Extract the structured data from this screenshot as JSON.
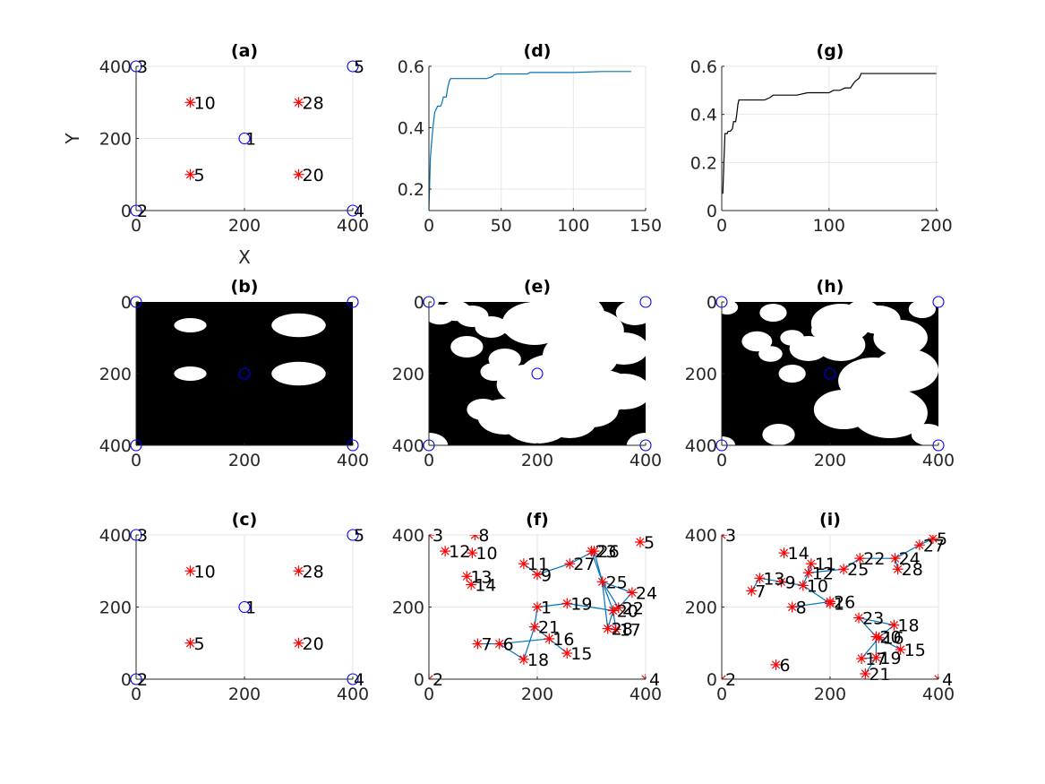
{
  "colors": {
    "circle": "#0000ff",
    "star": "#ff0000",
    "line_d": "#0072bd",
    "line_g": "#000000",
    "edge": "#0072bd",
    "grid": "#e6e6e6",
    "axes": "#262626"
  },
  "chart_data": [
    {
      "id": "a",
      "type": "scatter",
      "title": "(a)",
      "xlabel": "X",
      "ylabel": "Y",
      "xlim": [
        0,
        400
      ],
      "ylim": [
        0,
        400
      ],
      "xticks": [
        0,
        200,
        400
      ],
      "yticks": [
        0,
        200,
        400
      ],
      "grid": true,
      "circles": [
        [
          200,
          200
        ],
        [
          0,
          0
        ],
        [
          0,
          400
        ],
        [
          400,
          0
        ],
        [
          400,
          400
        ]
      ],
      "circle_labels": [
        "1",
        "2",
        "3",
        "4",
        "5"
      ],
      "stars": [
        [
          100,
          300
        ],
        [
          300,
          300
        ],
        [
          100,
          100
        ],
        [
          300,
          100
        ]
      ],
      "star_labels": [
        "10",
        "28",
        "5",
        "20"
      ]
    },
    {
      "id": "d",
      "type": "line",
      "title": "(d)",
      "xlabel": "",
      "ylabel": "",
      "xlim": [
        0,
        150
      ],
      "ylim": [
        0.13,
        0.6
      ],
      "xticks": [
        0,
        50,
        100,
        150
      ],
      "yticks": [
        0.2,
        0.4,
        0.6
      ],
      "grid": true,
      "x": [
        0,
        1,
        2,
        3,
        4,
        5,
        6,
        8,
        9,
        10,
        12,
        13,
        14,
        15,
        16,
        20,
        28,
        30,
        40,
        44,
        45,
        47,
        55,
        68,
        70,
        85,
        100,
        120,
        140
      ],
      "y": [
        0.13,
        0.3,
        0.36,
        0.41,
        0.45,
        0.46,
        0.47,
        0.47,
        0.48,
        0.5,
        0.5,
        0.53,
        0.55,
        0.56,
        0.56,
        0.56,
        0.56,
        0.56,
        0.56,
        0.567,
        0.572,
        0.575,
        0.575,
        0.575,
        0.58,
        0.58,
        0.58,
        0.583,
        0.583
      ]
    },
    {
      "id": "g",
      "type": "line",
      "title": "(g)",
      "xlabel": "",
      "ylabel": "",
      "xlim": [
        0,
        202
      ],
      "ylim": [
        0,
        0.6
      ],
      "xticks": [
        0,
        100,
        200
      ],
      "yticks": [
        0,
        0.2,
        0.4,
        0.6
      ],
      "grid": true,
      "x": [
        1,
        2,
        3,
        5,
        6,
        8,
        10,
        11,
        13,
        14,
        15,
        16,
        20,
        30,
        40,
        45,
        48,
        60,
        70,
        80,
        90,
        100,
        104,
        108,
        110,
        115,
        120,
        123,
        125,
        128,
        130,
        160,
        200
      ],
      "y": [
        0.07,
        0.2,
        0.32,
        0.32,
        0.33,
        0.33,
        0.34,
        0.37,
        0.37,
        0.4,
        0.44,
        0.46,
        0.46,
        0.46,
        0.46,
        0.47,
        0.48,
        0.48,
        0.48,
        0.49,
        0.49,
        0.49,
        0.5,
        0.5,
        0.5,
        0.51,
        0.51,
        0.53,
        0.54,
        0.55,
        0.57,
        0.57,
        0.57
      ]
    },
    {
      "id": "b",
      "type": "heatmap",
      "title": "(b)",
      "xlabel": "",
      "ylabel": "",
      "xlim": [
        0,
        400
      ],
      "ylim": [
        0,
        400
      ],
      "xticks": [
        0,
        200,
        400
      ],
      "yticks": [
        0,
        200,
        400
      ],
      "y_reversed": true,
      "grid": false,
      "blobs": [
        [
          100,
          65,
          30,
          20
        ],
        [
          100,
          200,
          30,
          20
        ],
        [
          300,
          65,
          50,
          33
        ],
        [
          300,
          200,
          50,
          33
        ]
      ],
      "circles": [
        [
          200,
          200
        ],
        [
          0,
          0
        ],
        [
          0,
          400
        ],
        [
          400,
          0
        ],
        [
          400,
          400
        ]
      ]
    },
    {
      "id": "e",
      "type": "heatmap",
      "title": "(e)",
      "xlabel": "",
      "ylabel": "",
      "xlim": [
        0,
        400
      ],
      "ylim": [
        0,
        400
      ],
      "xticks": [
        0,
        200,
        400
      ],
      "yticks": [
        0,
        200,
        400
      ],
      "y_reversed": true,
      "grid": false,
      "blobs": [
        [
          20,
          35,
          28,
          28
        ],
        [
          50,
          25,
          28,
          28
        ],
        [
          80,
          40,
          30,
          30
        ],
        [
          70,
          125,
          30,
          30
        ],
        [
          115,
          70,
          30,
          30
        ],
        [
          140,
          160,
          30,
          30
        ],
        [
          160,
          65,
          30,
          30
        ],
        [
          195,
          60,
          60,
          60
        ],
        [
          250,
          40,
          75,
          75
        ],
        [
          300,
          80,
          60,
          60
        ],
        [
          280,
          150,
          70,
          70
        ],
        [
          380,
          30,
          35,
          35
        ],
        [
          360,
          130,
          45,
          45
        ],
        [
          360,
          250,
          50,
          50
        ],
        [
          230,
          210,
          65,
          65
        ],
        [
          180,
          230,
          55,
          55
        ],
        [
          270,
          250,
          80,
          80
        ],
        [
          320,
          250,
          60,
          60
        ],
        [
          120,
          195,
          25,
          25
        ],
        [
          100,
          300,
          30,
          30
        ],
        [
          200,
          330,
          65,
          65
        ],
        [
          140,
          320,
          50,
          50
        ],
        [
          260,
          330,
          50,
          50
        ],
        [
          300,
          300,
          50,
          50
        ],
        [
          210,
          280,
          60,
          60
        ],
        [
          0,
          400,
          35,
          35
        ],
        [
          400,
          400,
          35,
          35
        ],
        [
          400,
          0,
          18,
          18
        ],
        [
          0,
          0,
          18,
          18
        ]
      ],
      "circles": [
        [
          200,
          200
        ],
        [
          0,
          0
        ],
        [
          0,
          400
        ],
        [
          400,
          0
        ],
        [
          400,
          400
        ]
      ]
    },
    {
      "id": "h",
      "type": "heatmap",
      "title": "(h)",
      "xlabel": "",
      "ylabel": "",
      "xlim": [
        0,
        400
      ],
      "ylim": [
        0,
        400
      ],
      "xticks": [
        0,
        200,
        400
      ],
      "yticks": [
        0,
        200,
        400
      ],
      "y_reversed": true,
      "grid": false,
      "blobs": [
        [
          10,
          15,
          20,
          20
        ],
        [
          95,
          30,
          25,
          25
        ],
        [
          65,
          110,
          28,
          28
        ],
        [
          90,
          145,
          22,
          22
        ],
        [
          130,
          100,
          22,
          22
        ],
        [
          190,
          80,
          25,
          25
        ],
        [
          160,
          130,
          35,
          35
        ],
        [
          220,
          120,
          45,
          45
        ],
        [
          220,
          60,
          55,
          55
        ],
        [
          290,
          50,
          40,
          40
        ],
        [
          330,
          100,
          50,
          50
        ],
        [
          340,
          190,
          60,
          60
        ],
        [
          280,
          220,
          65,
          65
        ],
        [
          225,
          300,
          55,
          55
        ],
        [
          310,
          310,
          70,
          70
        ],
        [
          380,
          370,
          30,
          30
        ],
        [
          400,
          400,
          30,
          30
        ],
        [
          0,
          400,
          25,
          25
        ],
        [
          105,
          370,
          30,
          30
        ],
        [
          130,
          200,
          25,
          25
        ],
        [
          260,
          25,
          30,
          30
        ],
        [
          370,
          20,
          25,
          25
        ],
        [
          400,
          0,
          15,
          15
        ]
      ],
      "circles": [
        [
          200,
          200
        ],
        [
          0,
          0
        ],
        [
          0,
          400
        ],
        [
          400,
          0
        ],
        [
          400,
          400
        ]
      ]
    },
    {
      "id": "c",
      "type": "scatter",
      "title": "(c)",
      "xlabel": "",
      "ylabel": "",
      "xlim": [
        0,
        400
      ],
      "ylim": [
        0,
        400
      ],
      "xticks": [
        0,
        200,
        400
      ],
      "yticks": [
        0,
        200,
        400
      ],
      "grid": true,
      "circles": [
        [
          200,
          200
        ],
        [
          0,
          0
        ],
        [
          0,
          400
        ],
        [
          400,
          0
        ],
        [
          400,
          400
        ]
      ],
      "circle_labels": [
        "1",
        "2",
        "3",
        "4",
        "5"
      ],
      "stars": [
        [
          100,
          300
        ],
        [
          300,
          300
        ],
        [
          100,
          100
        ],
        [
          300,
          100
        ]
      ],
      "star_labels": [
        "10",
        "28",
        "5",
        "20"
      ]
    },
    {
      "id": "f",
      "type": "scatter",
      "title": "(f)",
      "xlabel": "",
      "ylabel": "",
      "xlim": [
        0,
        400
      ],
      "ylim": [
        0,
        400
      ],
      "xticks": [
        0,
        200,
        400
      ],
      "yticks": [
        0,
        200,
        400
      ],
      "grid": true,
      "stars": [
        [
          200,
          200
        ],
        [
          0,
          0
        ],
        [
          0,
          400
        ],
        [
          400,
          0
        ],
        [
          390,
          380
        ],
        [
          130,
          98
        ],
        [
          90,
          98
        ],
        [
          85,
          400
        ],
        [
          200,
          290
        ],
        [
          80,
          350
        ],
        [
          175,
          320
        ],
        [
          30,
          355
        ],
        [
          70,
          285
        ],
        [
          78,
          262
        ],
        [
          255,
          72
        ],
        [
          222,
          112
        ],
        [
          345,
          138
        ],
        [
          175,
          55
        ],
        [
          255,
          210
        ],
        [
          340,
          190
        ],
        [
          195,
          145
        ],
        [
          350,
          198
        ],
        [
          300,
          355
        ],
        [
          375,
          240
        ],
        [
          320,
          270
        ],
        [
          305,
          355
        ],
        [
          260,
          320
        ],
        [
          330,
          140
        ]
      ],
      "star_labels": [
        "1",
        "2",
        "3",
        "4",
        "5",
        "6",
        "7",
        "8",
        "9",
        "10",
        "11",
        "12",
        "13",
        "14",
        "15",
        "16",
        "17",
        "18",
        "19",
        "20",
        "21",
        "22",
        "23",
        "24",
        "25",
        "26",
        "27",
        "28"
      ],
      "edges": [
        [
          200,
          200,
          255,
          210
        ],
        [
          255,
          210,
          340,
          190
        ],
        [
          340,
          190,
          350,
          198
        ],
        [
          350,
          198,
          375,
          240
        ],
        [
          375,
          240,
          320,
          270
        ],
        [
          320,
          270,
          305,
          355
        ],
        [
          305,
          355,
          260,
          320
        ],
        [
          260,
          320,
          200,
          290
        ],
        [
          200,
          290,
          175,
          320
        ],
        [
          320,
          270,
          330,
          140
        ],
        [
          330,
          140,
          340,
          190
        ],
        [
          340,
          190,
          320,
          270
        ],
        [
          200,
          200,
          195,
          145
        ],
        [
          195,
          145,
          222,
          112
        ],
        [
          222,
          112,
          255,
          72
        ],
        [
          195,
          145,
          175,
          55
        ],
        [
          175,
          55,
          130,
          98
        ],
        [
          130,
          98,
          90,
          98
        ],
        [
          222,
          112,
          130,
          98
        ],
        [
          300,
          355,
          320,
          270
        ],
        [
          340,
          190,
          345,
          138
        ],
        [
          350,
          198,
          320,
          270
        ]
      ]
    },
    {
      "id": "i",
      "type": "scatter",
      "title": "(i)",
      "xlabel": "",
      "ylabel": "",
      "xlim": [
        0,
        400
      ],
      "ylim": [
        0,
        400
      ],
      "xticks": [
        0,
        200,
        400
      ],
      "yticks": [
        0,
        200,
        400
      ],
      "grid": true,
      "stars": [
        [
          200,
          210
        ],
        [
          0,
          0
        ],
        [
          0,
          400
        ],
        [
          400,
          0
        ],
        [
          390,
          390
        ],
        [
          100,
          40
        ],
        [
          55,
          245
        ],
        [
          130,
          200
        ],
        [
          110,
          270
        ],
        [
          150,
          260
        ],
        [
          165,
          320
        ],
        [
          160,
          295
        ],
        [
          70,
          280
        ],
        [
          115,
          350
        ],
        [
          330,
          82
        ],
        [
          290,
          115
        ],
        [
          258,
          57
        ],
        [
          318,
          150
        ],
        [
          285,
          60
        ],
        [
          285,
          118
        ],
        [
          265,
          15
        ],
        [
          255,
          335
        ],
        [
          253,
          170
        ],
        [
          320,
          335
        ],
        [
          225,
          305
        ],
        [
          200,
          215
        ],
        [
          365,
          372
        ],
        [
          325,
          305
        ]
      ],
      "star_labels": [
        "1",
        "2",
        "3",
        "4",
        "5",
        "6",
        "7",
        "8",
        "9",
        "10",
        "11",
        "12",
        "13",
        "14",
        "15",
        "16",
        "17",
        "18",
        "19",
        "20",
        "21",
        "22",
        "23",
        "24",
        "25",
        "26",
        "27",
        "28"
      ],
      "edges": [
        [
          55,
          245,
          70,
          280
        ],
        [
          70,
          280,
          110,
          270
        ],
        [
          110,
          270,
          150,
          260
        ],
        [
          150,
          260,
          160,
          295
        ],
        [
          160,
          295,
          225,
          305
        ],
        [
          225,
          305,
          255,
          335
        ],
        [
          255,
          335,
          320,
          335
        ],
        [
          320,
          335,
          365,
          372
        ],
        [
          365,
          372,
          390,
          390
        ],
        [
          320,
          335,
          325,
          305
        ],
        [
          160,
          295,
          165,
          320
        ],
        [
          130,
          200,
          200,
          215
        ],
        [
          200,
          215,
          200,
          210
        ],
        [
          200,
          210,
          150,
          260
        ],
        [
          253,
          170,
          318,
          150
        ],
        [
          318,
          150,
          290,
          115
        ],
        [
          290,
          115,
          258,
          57
        ],
        [
          258,
          57,
          285,
          60
        ],
        [
          290,
          115,
          330,
          82
        ],
        [
          290,
          115,
          285,
          118
        ],
        [
          285,
          60,
          265,
          15
        ],
        [
          253,
          170,
          285,
          118
        ],
        [
          285,
          118,
          285,
          60
        ]
      ]
    }
  ]
}
